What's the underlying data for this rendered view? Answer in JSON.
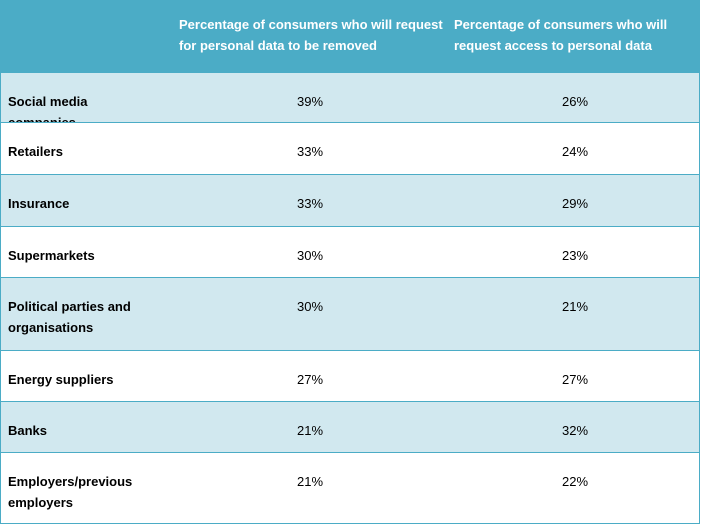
{
  "chart_data": {
    "type": "table",
    "columns": [
      "Percentage of consumers who will request for personal data to be removed",
      "Percentage of consumers who will request access to personal data"
    ],
    "rows": [
      {
        "category": "Social media companies",
        "removed": "39%",
        "access": "26%"
      },
      {
        "category": "Retailers",
        "removed": "33%",
        "access": "24%"
      },
      {
        "category": "Insurance",
        "removed": "33%",
        "access": "29%"
      },
      {
        "category": "Supermarkets",
        "removed": "30%",
        "access": "23%"
      },
      {
        "category": "Political parties and organisations",
        "removed": "30%",
        "access": "21%"
      },
      {
        "category": "Energy suppliers",
        "removed": "27%",
        "access": "27%"
      },
      {
        "category": "Banks",
        "removed": "21%",
        "access": "32%"
      },
      {
        "category": "Employers/previous employers",
        "removed": "21%",
        "access": "22%"
      }
    ],
    "colors": {
      "header": "#4bacc6",
      "band": "#d1e8ef",
      "plain": "#ffffff"
    }
  }
}
